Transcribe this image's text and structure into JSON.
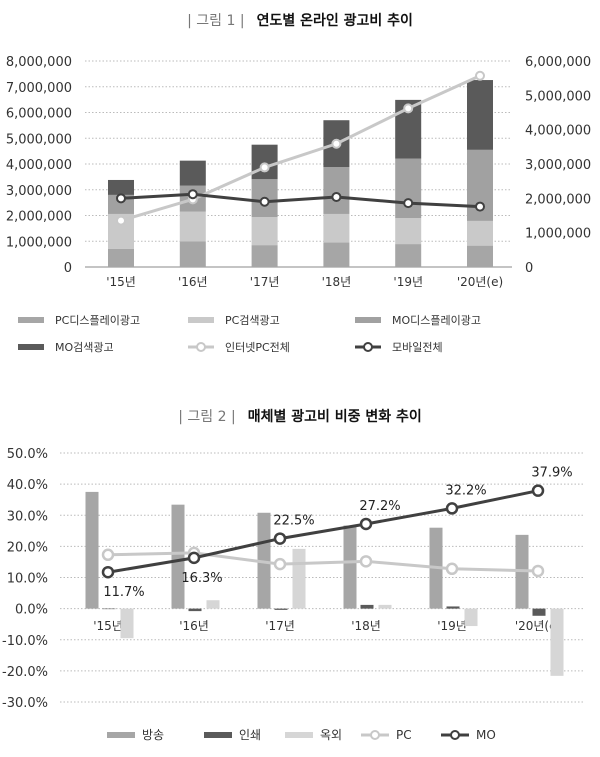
{
  "chart_data": [
    {
      "type": "bar",
      "figure_label": "| 그림 1 |",
      "title": "연도별 온라인 광고비 추이",
      "stacked": true,
      "categories": [
        "'15년",
        "'16년",
        "'17년",
        "'18년",
        "'19년",
        "'20년(e)"
      ],
      "ylim": [
        0,
        8000000
      ],
      "y_ticks": [
        "0",
        "1,000,000",
        "2,000,000",
        "3,000,000",
        "4,000,000",
        "5,000,000",
        "6,000,000",
        "7,000,000",
        "8,000,000"
      ],
      "y2lim": [
        0,
        6000000
      ],
      "y2_ticks": [
        "0",
        "1,000,000",
        "2,000,000",
        "3,000,000",
        "4,000,000",
        "5,000,000",
        "6,000,000"
      ],
      "grid": true,
      "legend_position": "bottom",
      "series": [
        {
          "name": "PC디스플레이광고",
          "kind": "bar",
          "axis": "left",
          "color": "#a6a6a6",
          "values": [
            710000,
            990000,
            850000,
            950000,
            890000,
            830000
          ]
        },
        {
          "name": "PC검색광고",
          "kind": "bar",
          "axis": "left",
          "color": "#c9c9c9",
          "values": [
            1350000,
            1160000,
            1090000,
            1110000,
            1010000,
            960000
          ]
        },
        {
          "name": "MO디스플레이광고",
          "kind": "bar",
          "axis": "left",
          "color": "#a1a1a1",
          "values": [
            740000,
            1010000,
            1470000,
            1820000,
            2310000,
            2760000
          ]
        },
        {
          "name": "MO검색광고",
          "kind": "bar",
          "axis": "left",
          "color": "#5a5a5a",
          "values": [
            580000,
            970000,
            1340000,
            1820000,
            2280000,
            2710000
          ]
        },
        {
          "name": "인터넷PC전체",
          "kind": "line",
          "axis": "right",
          "color": "#c8c8c8",
          "values": [
            1350000,
            1970000,
            2900000,
            3590000,
            4620000,
            5570000
          ]
        },
        {
          "name": "모바일전체",
          "kind": "line",
          "axis": "right",
          "color": "#404040",
          "values": [
            2000000,
            2120000,
            1900000,
            2040000,
            1860000,
            1760000
          ]
        }
      ]
    },
    {
      "type": "bar",
      "figure_label": "| 그림 2 |",
      "title": "매체별 광고비 비중 변화 추이",
      "categories": [
        "'15년",
        "'16년",
        "'17년",
        "'18년",
        "'19년",
        "'20년(e)"
      ],
      "ylim": [
        -30,
        50
      ],
      "y_ticks": [
        "-30.0%",
        "-20.0%",
        "-10.0%",
        "0.0%",
        "10.0%",
        "20.0%",
        "30.0%",
        "40.0%",
        "50.0%"
      ],
      "grid": true,
      "legend_position": "bottom",
      "series": [
        {
          "name": "방송",
          "kind": "bar",
          "color": "#a6a6a6",
          "values": [
            37.5,
            33.4,
            30.8,
            26.7,
            26.0,
            23.7
          ]
        },
        {
          "name": "인쇄",
          "kind": "bar",
          "color": "#5a5a5a",
          "values": [
            0.0,
            -0.8,
            -0.4,
            1.2,
            0.7,
            -2.3
          ]
        },
        {
          "name": "옥외",
          "kind": "bar",
          "color": "#d6d6d6",
          "values": [
            -9.5,
            2.7,
            19.2,
            1.2,
            -5.6,
            -21.6
          ]
        },
        {
          "name": "PC",
          "kind": "line",
          "color": "#c8c8c8",
          "values": [
            17.3,
            17.9,
            14.3,
            15.2,
            12.8,
            12.1
          ]
        },
        {
          "name": "MO",
          "kind": "line",
          "color": "#404040",
          "values": [
            11.7,
            16.3,
            22.5,
            27.2,
            32.2,
            37.9
          ],
          "data_labels": [
            "11.7%",
            "16.3%",
            "22.5%",
            "27.2%",
            "32.2%",
            "37.9%"
          ]
        }
      ]
    }
  ]
}
